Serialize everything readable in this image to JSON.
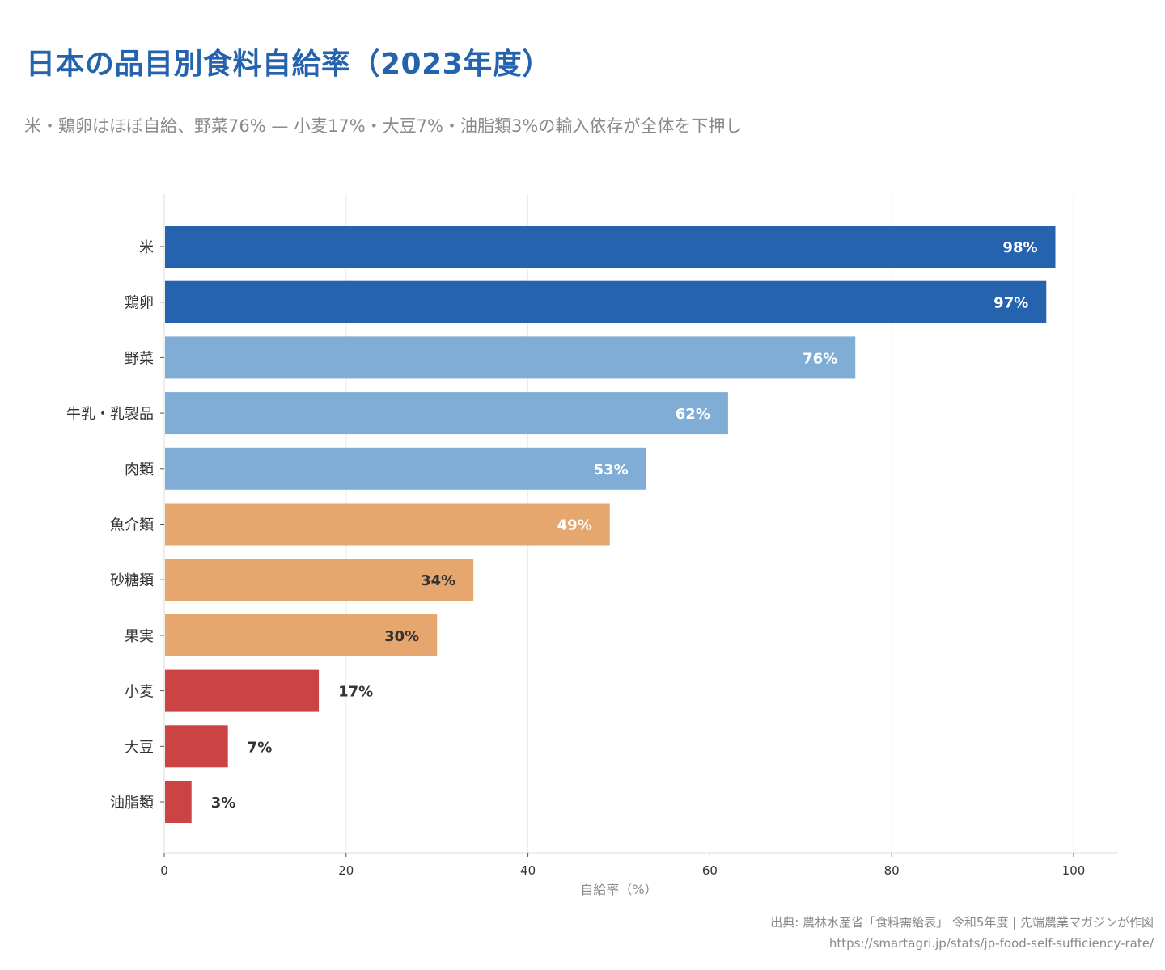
{
  "header": {
    "title": "日本の品目別食料自給率（2023年度）",
    "subtitle": "米・鶏卵はほぼ自給、野菜76% — 小麦17%・大豆7%・油脂類3%の輸入依存が全体を下押し"
  },
  "footer": {
    "source_line": "出典: 農林水産省「食料需給表」 令和5年度 | 先端農業マガジンが作図",
    "url_line": "https://smartagri.jp/stats/jp-food-self-sufficiency-rate/"
  },
  "chart_data": {
    "type": "bar",
    "orientation": "horizontal",
    "title": "日本の品目別食料自給率（2023年度）",
    "subtitle": "米・鶏卵はほぼ自給、野菜76% — 小麦17%・大豆7%・油脂類3%の輸入依存が全体を下押し",
    "xlabel": "自給率（%）",
    "ylabel": "",
    "xlim": [
      0,
      105
    ],
    "xticks": [
      0,
      20,
      40,
      60,
      80,
      100
    ],
    "grid": "vertical",
    "categories": [
      "米",
      "鶏卵",
      "野菜",
      "牛乳・乳製品",
      "肉類",
      "魚介類",
      "砂糖類",
      "果実",
      "小麦",
      "大豆",
      "油脂類"
    ],
    "values": [
      98,
      97,
      76,
      62,
      53,
      49,
      34,
      30,
      17,
      7,
      3
    ],
    "value_labels": [
      "98%",
      "97%",
      "76%",
      "62%",
      "53%",
      "49%",
      "34%",
      "30%",
      "17%",
      "7%",
      "3%"
    ],
    "bar_colors": [
      "#2563ae",
      "#2563ae",
      "#7fadd6",
      "#7fadd6",
      "#7fadd6",
      "#e6a76e",
      "#e6a76e",
      "#e6a76e",
      "#cc4343",
      "#cc4343",
      "#cc4343"
    ],
    "label_colors": [
      "#ffffff",
      "#ffffff",
      "#ffffff",
      "#ffffff",
      "#ffffff",
      "#ffffff",
      "#333333",
      "#333333",
      "#333333",
      "#333333",
      "#333333"
    ]
  }
}
